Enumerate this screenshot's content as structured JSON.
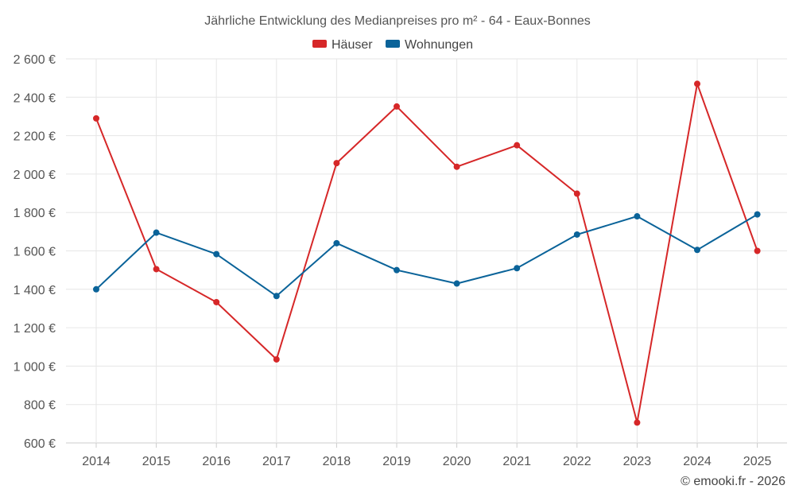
{
  "chart_data": {
    "type": "line",
    "title": "Jährliche Entwicklung des Medianpreises pro m² - 64 - Eaux-Bonnes",
    "xlabel": "",
    "ylabel": "",
    "x": [
      2014,
      2015,
      2016,
      2017,
      2018,
      2019,
      2020,
      2021,
      2022,
      2023,
      2024,
      2025
    ],
    "ylim": [
      600,
      2600
    ],
    "yticks": [
      600,
      800,
      1000,
      1200,
      1400,
      1600,
      1800,
      2000,
      2200,
      2400,
      2600
    ],
    "ytick_labels": [
      "600 €",
      "800 €",
      "1 000 €",
      "1 200 €",
      "1 400 €",
      "1 600 €",
      "1 800 €",
      "2 000 €",
      "2 200 €",
      "2 400 €",
      "2 600 €"
    ],
    "grid": true,
    "legend_position": "top-center",
    "series": [
      {
        "name": "Häuser",
        "color": "#d62728",
        "values": [
          2290,
          1505,
          1333,
          1035,
          2057,
          2352,
          2038,
          2150,
          1898,
          706,
          2470,
          1600
        ]
      },
      {
        "name": "Wohnungen",
        "color": "#0a6399",
        "values": [
          1400,
          1695,
          1583,
          1365,
          1640,
          1500,
          1430,
          1510,
          1685,
          1780,
          1605,
          1790
        ]
      }
    ]
  },
  "credit": "© emooki.fr - 2026"
}
